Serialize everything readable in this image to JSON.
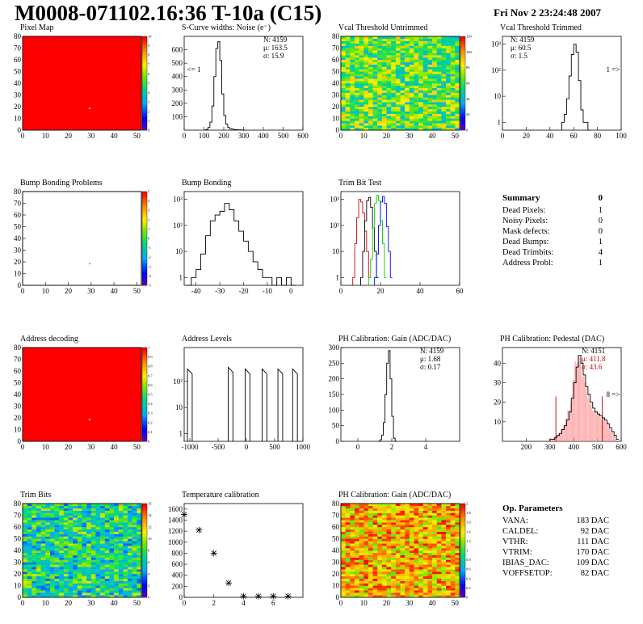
{
  "header": {
    "title": "M0008-071102.16:36 T-10a (C15)",
    "date": "Fri Nov  2 23:24:48 2007"
  },
  "colors": {
    "red": "#ff0000",
    "black": "#000000",
    "green": "#00cc00",
    "blue": "#0000ff",
    "darkred": "#cc0000"
  },
  "chart_data": [
    {
      "id": "pixel-map",
      "type": "heatmap",
      "title": "Pixel Map",
      "xlim": [
        0,
        52
      ],
      "ylim": [
        0,
        80
      ],
      "xticks": [
        "0",
        "10",
        "20",
        "30",
        "40",
        "50"
      ],
      "yticks": [
        "0",
        "10",
        "20",
        "30",
        "40",
        "50",
        "60",
        "70",
        "80"
      ],
      "zticks": [
        "0",
        "1",
        "2",
        "3",
        "4",
        "5",
        "6",
        "7",
        "8",
        "9",
        "10"
      ],
      "uniform_value": 10,
      "outlier_cells": [
        {
          "x": 29,
          "y": 18,
          "value": 0
        }
      ]
    },
    {
      "id": "scurve-noise",
      "type": "line",
      "title": "S-Curve widths: Noise (e⁻)",
      "xlim": [
        0,
        600
      ],
      "ylim": [
        0,
        700
      ],
      "xticks": [
        "0",
        "100",
        "200",
        "300",
        "400",
        "500",
        "600"
      ],
      "yticks": [
        "100",
        "200",
        "300",
        "400",
        "500",
        "600"
      ],
      "x": [
        100,
        110,
        120,
        130,
        140,
        150,
        160,
        170,
        180,
        190,
        200,
        210,
        220,
        230,
        240,
        250,
        260,
        270,
        280,
        290,
        300
      ],
      "y": [
        0,
        5,
        20,
        60,
        180,
        400,
        610,
        660,
        520,
        270,
        110,
        45,
        20,
        10,
        8,
        4,
        3,
        2,
        2,
        1,
        0
      ],
      "stats": {
        "N": "N: 4159",
        "mu": "μ: 163.5",
        "sigma": "σ: 15.9"
      },
      "annotation": "<= 1"
    },
    {
      "id": "vcal-untrimmed",
      "type": "heatmap",
      "title": "Vcal Threshold Untrimmed",
      "xlim": [
        0,
        52
      ],
      "ylim": [
        0,
        80
      ],
      "xticks": [
        "0",
        "10",
        "20",
        "30",
        "40",
        "50"
      ],
      "yticks": [
        "0",
        "10",
        "20",
        "30",
        "40",
        "50",
        "60",
        "70",
        "80"
      ],
      "zticks": [
        "0",
        "20",
        "40",
        "60",
        "80",
        "100",
        "120"
      ],
      "zlim": [
        0,
        130
      ],
      "typical_value": 70
    },
    {
      "id": "vcal-trimmed",
      "type": "line",
      "title": "Vcal Threshold Trimmed",
      "xlim": [
        0,
        100
      ],
      "ylim": [
        0.5,
        2000
      ],
      "log_y": true,
      "xticks": [
        "0",
        "20",
        "40",
        "60",
        "80",
        "100"
      ],
      "yticks": [
        "1",
        "10",
        "10²",
        "10³"
      ],
      "x": [
        50,
        52,
        54,
        56,
        58,
        60,
        62,
        64,
        66,
        68,
        70,
        72
      ],
      "y": [
        1,
        2,
        8,
        60,
        400,
        1000,
        500,
        40,
        3,
        1,
        1,
        0
      ],
      "stats": {
        "N": "N: 4159",
        "mu": "μ: 60.5",
        "sigma": "σ:  1.5"
      },
      "annotation": "1 =>"
    },
    {
      "id": "bump-bonding-problems",
      "type": "heatmap",
      "title": "Bump Bonding Problems",
      "xlim": [
        0,
        52
      ],
      "ylim": [
        0,
        80
      ],
      "xticks": [
        "0",
        "10",
        "20",
        "30",
        "40",
        "50"
      ],
      "yticks": [
        "0",
        "10",
        "20",
        "30",
        "40",
        "50",
        "60",
        "70",
        "80"
      ],
      "zticks": [
        "-5",
        "-4",
        "-3",
        "-2",
        "-1",
        "0",
        "1",
        "2",
        "3",
        "4",
        "5"
      ],
      "outlier_cells": [
        {
          "x": 29,
          "y": 18,
          "value": 1
        }
      ]
    },
    {
      "id": "bump-bonding",
      "type": "line",
      "title": "Bump Bonding",
      "xlim": [
        -45,
        5
      ],
      "ylim": [
        0.5,
        2000
      ],
      "log_y": true,
      "xticks": [
        "-40",
        "-30",
        "-20",
        "-10",
        "0"
      ],
      "yticks": [
        "1",
        "10",
        "10²",
        "10³"
      ],
      "x": [
        -44,
        -42,
        -40,
        -38,
        -36,
        -34,
        -32,
        -30,
        -28,
        -26,
        -24,
        -22,
        -20,
        -18,
        -16,
        -14,
        -12,
        -10,
        -8,
        -6,
        -4,
        -2,
        0
      ],
      "y": [
        0,
        1,
        2,
        8,
        40,
        150,
        250,
        350,
        700,
        400,
        150,
        60,
        25,
        10,
        4,
        2,
        1,
        1,
        0,
        1,
        0,
        1,
        0
      ],
      "stats": {},
      "annotation": ""
    },
    {
      "id": "trim-bit-test",
      "type": "line",
      "title": "Trim Bit Test",
      "xlim": [
        0,
        60
      ],
      "ylim": [
        0.5,
        2000
      ],
      "log_y": true,
      "xticks": [
        "0",
        "20",
        "40",
        "60"
      ],
      "yticks": [
        "1",
        "10",
        "10²",
        "10³"
      ],
      "series": [
        {
          "color": "#cc0000",
          "x": [
            6,
            7,
            8,
            9,
            10,
            11,
            12,
            13,
            14
          ],
          "y": [
            1,
            20,
            200,
            1000,
            800,
            300,
            60,
            10,
            1
          ]
        },
        {
          "color": "#000000",
          "x": [
            10,
            11,
            12,
            13,
            14,
            15,
            16,
            17,
            18
          ],
          "y": [
            1,
            10,
            150,
            900,
            1200,
            500,
            80,
            10,
            1
          ]
        },
        {
          "color": "#00cc00",
          "x": [
            14,
            15,
            16,
            17,
            18,
            19,
            20,
            21,
            22
          ],
          "y": [
            1,
            5,
            80,
            700,
            1400,
            900,
            150,
            20,
            1
          ]
        },
        {
          "color": "#0000ff",
          "x": [
            17,
            18,
            19,
            20,
            21,
            22,
            23,
            24,
            25
          ],
          "y": [
            1,
            8,
            100,
            800,
            1300,
            700,
            90,
            10,
            1
          ]
        }
      ],
      "stats": {},
      "annotation": ""
    },
    {
      "id": "address-decoding",
      "type": "heatmap",
      "title": "Address decoding",
      "xlim": [
        0,
        52
      ],
      "ylim": [
        0,
        80
      ],
      "xticks": [
        "0",
        "10",
        "20",
        "30",
        "40",
        "50"
      ],
      "yticks": [
        "0",
        "10",
        "20",
        "30",
        "40",
        "50",
        "60",
        "70",
        "80"
      ],
      "zticks": [
        "0",
        "0.1",
        "0.2",
        "0.3",
        "0.4",
        "0.5",
        "0.6",
        "0.7",
        "0.8",
        "0.9",
        "1"
      ],
      "uniform_value": 1,
      "outlier_cells": [
        {
          "x": 29,
          "y": 18,
          "value": 0
        }
      ]
    },
    {
      "id": "address-levels",
      "type": "line",
      "title": "Address Levels",
      "xlim": [
        -1100,
        1000
      ],
      "ylim": [
        0.5,
        2000
      ],
      "log_y": true,
      "xticks": [
        "-1000",
        "-500",
        "0",
        "500",
        "1000"
      ],
      "yticks": [
        "1",
        "10",
        "10²"
      ],
      "peaks": [
        -1000,
        -280,
        20,
        320,
        600,
        860
      ],
      "peak_heights": [
        300,
        350,
        300,
        300,
        300,
        300
      ],
      "stats": {},
      "annotation": ""
    },
    {
      "id": "ph-gain",
      "type": "line",
      "title": "PH Calibration: Gain (ADC/DAC)",
      "xlim": [
        -1,
        6
      ],
      "ylim": [
        0,
        300
      ],
      "xticks": [
        "0",
        "2",
        "4"
      ],
      "yticks": [
        "0",
        "50",
        "100",
        "150",
        "200",
        "250",
        "300"
      ],
      "x": [
        1.2,
        1.3,
        1.4,
        1.5,
        1.6,
        1.7,
        1.8,
        1.9,
        2.0,
        2.1,
        2.2
      ],
      "y": [
        0,
        5,
        20,
        60,
        150,
        250,
        290,
        200,
        80,
        10,
        0
      ],
      "stats": {
        "N": "N: 4159",
        "mu": "μ: 1.68",
        "sigma": "σ: 0.17"
      },
      "annotation": ""
    },
    {
      "id": "ph-pedestal",
      "type": "line",
      "title": "PH Calibration: Pedestal (DAC)",
      "xlim": [
        100,
        600
      ],
      "ylim": [
        0,
        48
      ],
      "xticks": [
        "200",
        "300",
        "400",
        "500",
        "600"
      ],
      "yticks": [
        "10",
        "20",
        "30",
        "40"
      ],
      "x": [
        300,
        310,
        320,
        330,
        340,
        350,
        360,
        370,
        380,
        390,
        400,
        410,
        420,
        430,
        440,
        450,
        460,
        470,
        480,
        490,
        500,
        510,
        520,
        530,
        540,
        550,
        560,
        570,
        580
      ],
      "y": [
        1,
        1,
        2,
        3,
        4,
        6,
        8,
        11,
        15,
        22,
        30,
        38,
        44,
        40,
        34,
        28,
        24,
        20,
        17,
        15,
        14,
        13,
        12,
        11,
        9,
        7,
        5,
        3,
        1
      ],
      "cut_lines": [
        325,
        520
      ],
      "stats": {
        "N": "N: 4151",
        "mu": "μ: 411.8",
        "sigma": "σ: 43.6"
      },
      "annotation": "8 =>"
    },
    {
      "id": "trim-bits",
      "type": "heatmap",
      "title": "Trim Bits",
      "xlim": [
        0,
        52
      ],
      "ylim": [
        0,
        80
      ],
      "xticks": [
        "0",
        "10",
        "20",
        "30",
        "40",
        "50"
      ],
      "yticks": [
        "0",
        "10",
        "20",
        "30",
        "40",
        "50",
        "60",
        "70",
        "80"
      ],
      "zticks": [
        "0",
        "2",
        "4",
        "6",
        "8",
        "10",
        "12",
        "14",
        "16"
      ],
      "zlim": [
        0,
        16
      ],
      "typical_value": 7
    },
    {
      "id": "temperature-calibration",
      "type": "scatter",
      "title": "Temperature calibration",
      "xlim": [
        0,
        8
      ],
      "ylim": [
        0,
        1700
      ],
      "xticks": [
        "0",
        "2",
        "4",
        "6"
      ],
      "yticks": [
        "0",
        "200",
        "400",
        "600",
        "800",
        "1000",
        "1200",
        "1400",
        "1600"
      ],
      "x": [
        0,
        1,
        2,
        3,
        4,
        5,
        6,
        7
      ],
      "y": [
        1500,
        1220,
        800,
        260,
        20,
        20,
        20,
        20
      ]
    },
    {
      "id": "ph-gain-map",
      "type": "heatmap",
      "title": "PH Calibration: Gain (ADC/DAC)",
      "xlim": [
        0,
        52
      ],
      "ylim": [
        0,
        80
      ],
      "xticks": [
        "0",
        "10",
        "20",
        "30",
        "40",
        "50"
      ],
      "yticks": [
        "0",
        "10",
        "20",
        "30",
        "40",
        "50",
        "60",
        "70",
        "80"
      ],
      "zticks": [
        "0",
        "0.2",
        "0.4",
        "0.6",
        "0.8",
        "1",
        "1.2",
        "1.4",
        "1.6",
        "1.8",
        "2"
      ],
      "zlim": [
        0,
        2.2
      ],
      "typical_value": 1.7
    }
  ],
  "summary": {
    "title": "Summary",
    "total": "0",
    "rows": [
      {
        "label": "Dead Pixels:",
        "value": "1"
      },
      {
        "label": "Noisy Pixels:",
        "value": "0"
      },
      {
        "label": "Mask defects:",
        "value": "0"
      },
      {
        "label": "Dead Bumps:",
        "value": "1"
      },
      {
        "label": "Dead Trimbits:",
        "value": "4"
      },
      {
        "label": "Address Probl:",
        "value": "1"
      }
    ]
  },
  "op_params": {
    "title": "Op. Parameters",
    "rows": [
      {
        "label": "VANA:",
        "value": "183 DAC"
      },
      {
        "label": "CALDEL:",
        "value": "92 DAC"
      },
      {
        "label": "VTHR:",
        "value": "111 DAC"
      },
      {
        "label": "VTRIM:",
        "value": "170 DAC"
      },
      {
        "label": "IBIAS_DAC:",
        "value": "109 DAC"
      },
      {
        "label": "VOFFSETOP:",
        "value": "82 DAC"
      }
    ]
  }
}
